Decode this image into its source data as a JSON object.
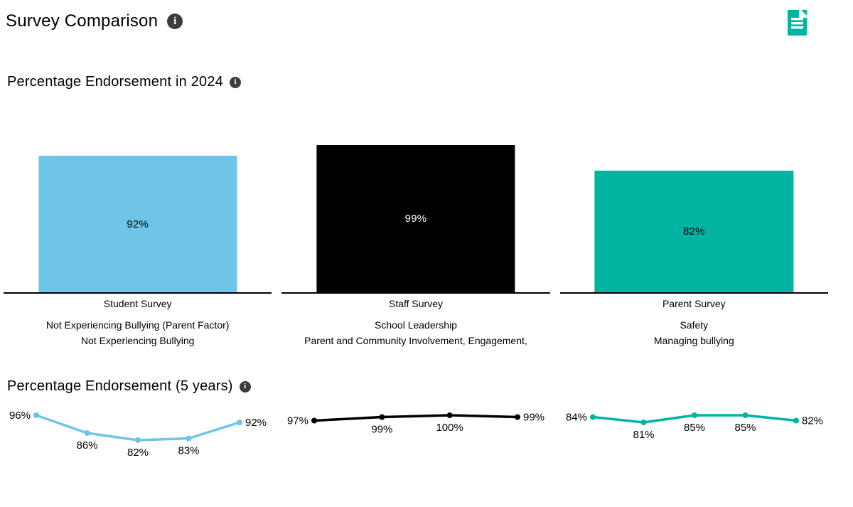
{
  "header": {
    "title": "Survey Comparison"
  },
  "icons": {
    "info_glyph": "i",
    "title_info": "info-icon",
    "bars_info": "info-icon",
    "lines_info": "info-icon",
    "report_doc": "document-icon"
  },
  "colors": {
    "student_blue": "#6EC5E8",
    "staff_black": "#000000",
    "parent_teal": "#00B4A1",
    "info_gray": "#3D3D3D",
    "accent_teal": "#00B4A1",
    "white": "#FFFFFF"
  },
  "sections": {
    "bars": {
      "heading": "Percentage Endorsement in 2024"
    },
    "lines": {
      "heading": "Percentage Endorsement (5 years)"
    }
  },
  "chart_data": [
    {
      "type": "bar",
      "title": "Percentage Endorsement in 2024",
      "categories": [
        "Student Survey",
        "Staff Survey",
        "Parent Survey"
      ],
      "values": [
        92,
        99,
        82
      ],
      "bar_colors": [
        "#6EC5E8",
        "#000000",
        "#00B4A1"
      ],
      "value_label_colors": [
        "#000000",
        "#FFFFFF",
        "#000000"
      ],
      "measures": [
        [
          "Not Experiencing Bullying (Parent Factor)",
          "Not Experiencing Bullying"
        ],
        [
          "School Leadership",
          "Parent and Community Involvement, Engagement,"
        ],
        [
          "Safety",
          "Managing bullying"
        ]
      ],
      "ylim": [
        0,
        100
      ],
      "grid": false,
      "legend": false,
      "value_suffix": "%"
    },
    {
      "type": "line",
      "title": "Percentage Endorsement (5 years)",
      "series": [
        {
          "name": "Student Survey",
          "color": "#6EC5E8",
          "values": [
            96,
            86,
            82,
            83,
            92
          ]
        },
        {
          "name": "Staff Survey",
          "color": "#000000",
          "values": [
            97,
            99,
            100,
            99
          ]
        },
        {
          "name": "Parent Survey",
          "color": "#00B4A1",
          "values": [
            84,
            81,
            85,
            85,
            82
          ]
        }
      ],
      "grid": false,
      "legend": false,
      "value_suffix": "%"
    }
  ]
}
